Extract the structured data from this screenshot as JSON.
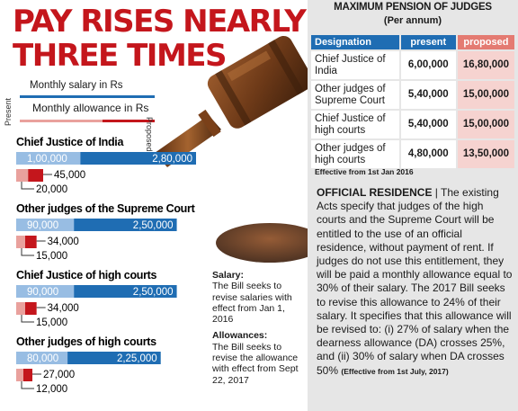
{
  "headline": {
    "line1": "PAY RISES NEARLY",
    "line2": "THREE TIMES"
  },
  "legend": {
    "salary": "Monthly salary in Rs",
    "allowance": "Monthly allowance in Rs",
    "present": "Present",
    "proposed": "Proposed"
  },
  "colors": {
    "salary_present": "#98bde3",
    "salary_proposed": "#1f6db3",
    "allowance_present": "#e9a19d",
    "allowance_proposed": "#c4161c",
    "headline_red": "#c4161c"
  },
  "chart_data": {
    "type": "bar",
    "title": "PAY RISES NEARLY THREE TIMES",
    "categories": [
      "Chief Justice of India",
      "Other judges of the Supreme Court",
      "Chief Justice of high courts",
      "Other judges of high courts"
    ],
    "series": [
      {
        "name": "Monthly salary in Rs (Present)",
        "values": [
          100000,
          90000,
          90000,
          80000
        ]
      },
      {
        "name": "Monthly salary in Rs (Proposed)",
        "values": [
          280000,
          250000,
          250000,
          225000
        ]
      },
      {
        "name": "Monthly allowance in Rs (Present)",
        "values": [
          20000,
          15000,
          15000,
          12000
        ]
      },
      {
        "name": "Monthly allowance in Rs (Proposed)",
        "values": [
          45000,
          34000,
          34000,
          27000
        ]
      }
    ],
    "labels": {
      "salary_present": [
        "1,00,000",
        "90,000",
        "90,000",
        "80,000"
      ],
      "salary_proposed": [
        "2,80,000",
        "2,50,000",
        "2,50,000",
        "2,25,000"
      ],
      "allowance_present": [
        "20,000",
        "15,000",
        "15,000",
        "12,000"
      ],
      "allowance_proposed": [
        "45,000",
        "34,000",
        "34,000",
        "27,000"
      ]
    }
  },
  "notes": {
    "salary_title": "Salary:",
    "salary_text": "The Bill seeks to revise salaries with effect from Jan 1, 2016",
    "allowance_title": "Allowances:",
    "allowance_text": "The Bill seeks to revise the allowance with effect from Sept 22, 2017"
  },
  "pension": {
    "title": "MAXIMUM PENSION OF JUDGES",
    "subtitle": "(Per annum)",
    "headers": {
      "designation": "Designation",
      "present": "present",
      "proposed": "proposed"
    },
    "rows": [
      {
        "designation": "Chief Justice of India",
        "present": "6,00,000",
        "proposed": "16,80,000"
      },
      {
        "designation": "Other judges of Supreme Court",
        "present": "5,40,000",
        "proposed": "15,00,000"
      },
      {
        "designation": "Chief Justice of high courts",
        "present": "5,40,000",
        "proposed": "15,00,000"
      },
      {
        "designation": "Other judges of high courts",
        "present": "4,80,000",
        "proposed": "13,50,000"
      }
    ],
    "effective": "Effective from 1st Jan 2016"
  },
  "residence": {
    "heading": "OFFICIAL RESIDENCE",
    "body": " | The existing Acts specify that judges of the high courts and the Supreme Court will be entitled to the use of an official residence, without payment of rent.  If judges do not use this entitlement, they will be paid a monthly allowance equal to 30% of their salary.  The 2017 Bill seeks to revise this allowance to 24% of their salary. It specifies that this allowance will be revised to: (i) 27% of salary when the dearness allowance (DA) crosses 25%, and (ii) 30% of salary when DA crosses 50% ",
    "effective": "(Effective from 1st July, 2017)"
  }
}
